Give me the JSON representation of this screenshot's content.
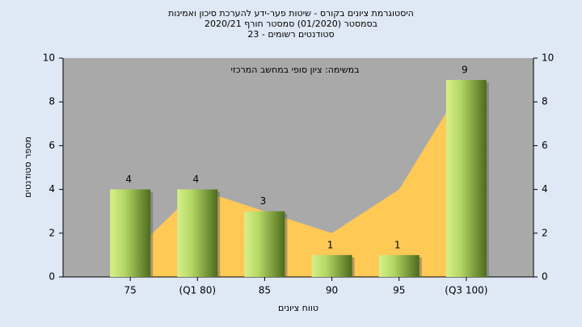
{
  "chart_data": {
    "type": "bar",
    "title": "היסטוגרמת ציונים בקורס - שיטות פער-ידע להערכת סיכון ואמינות",
    "subtitle": "בסמסטר  (01/2020)  סמסטר חורף 2020/21",
    "subtitle2": "סטודנטים רשומים - 23",
    "annotation": "במשימה: ציון סופי במחשב המרכזי",
    "x_label": "טווח ציונים",
    "y_label": "מספר סטודנטים",
    "categories": [
      "75",
      "(Q1 80)",
      "85",
      "90",
      "95",
      "(Q3 100)"
    ],
    "values": [
      4,
      4,
      3,
      1,
      1,
      9
    ],
    "color": "#8fb84a",
    "area": {
      "color": "#ffc956",
      "values": [
        1,
        4,
        3,
        2,
        4,
        9
      ]
    },
    "ylim": [
      0,
      10
    ],
    "yticks": [
      0,
      2,
      4,
      6,
      8,
      10
    ],
    "y2lim": [
      0,
      10
    ],
    "y2ticks": [
      0,
      2,
      4,
      6,
      8,
      10
    ]
  }
}
